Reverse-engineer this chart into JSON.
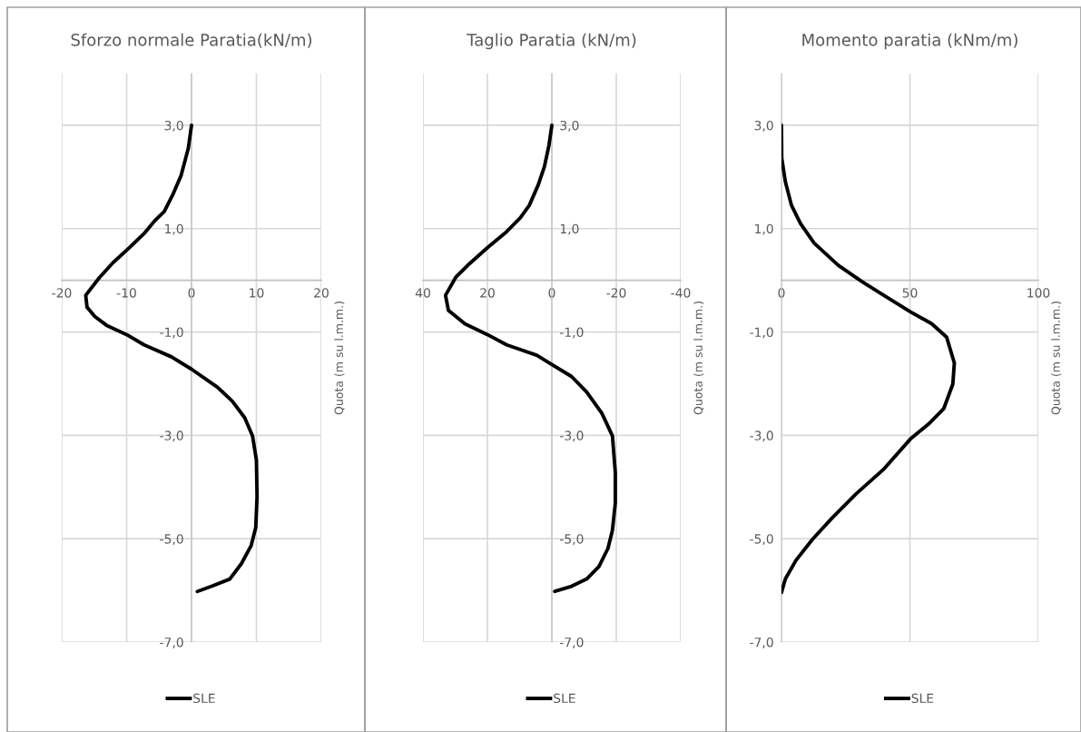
{
  "chart_data": [
    {
      "type": "line",
      "title": "Sforzo normale Paratia(kN/m)",
      "ylabel": "Quota (m su l.m.m.)",
      "xlim": [
        -20,
        20
      ],
      "xticks": [
        -20,
        -10,
        0,
        10,
        20
      ],
      "ylim": [
        -7,
        4
      ],
      "yticks": [
        {
          "value": -7,
          "label": "-7,0"
        },
        {
          "value": -5,
          "label": "-5,0"
        },
        {
          "value": -3,
          "label": "-3,0"
        },
        {
          "value": -1,
          "label": "-1,0"
        },
        {
          "value": 1,
          "label": "1,0"
        },
        {
          "value": 3,
          "label": "3,0"
        }
      ],
      "grid": true,
      "legend": "bottom",
      "series": [
        {
          "name": "SLE",
          "color": "#000000",
          "x": [
            0,
            -0.5,
            -1.6,
            -2.8,
            -4.2,
            -5.6,
            -7.2,
            -9.6,
            -12.1,
            -14.2,
            -16.3,
            -16.1,
            -14.9,
            -13.1,
            -10.0,
            -7.3,
            -3.1,
            0,
            4.0,
            6.3,
            8.2,
            9.4,
            10.0,
            10.1,
            9.9,
            9.2,
            7.7,
            5.9,
            3.1,
            0.9
          ],
          "values": [
            3.0,
            2.55,
            2.03,
            1.68,
            1.33,
            1.16,
            0.92,
            0.63,
            0.34,
            0.05,
            -0.29,
            -0.52,
            -0.7,
            -0.87,
            -1.05,
            -1.25,
            -1.48,
            -1.72,
            -2.07,
            -2.34,
            -2.66,
            -3.01,
            -3.48,
            -4.19,
            -4.78,
            -5.13,
            -5.48,
            -5.78,
            -5.92,
            -6.02
          ]
        }
      ]
    },
    {
      "type": "line",
      "title": "Taglio Paratia (kN/m)",
      "ylabel": "Quota (m su l.m.m.)",
      "xlim": [
        40,
        -40
      ],
      "xticks": [
        40,
        20,
        0,
        -20,
        -40
      ],
      "ylim": [
        -7,
        4
      ],
      "yticks": [
        {
          "value": -7,
          "label": "-7,0"
        },
        {
          "value": -5,
          "label": "-5,0"
        },
        {
          "value": -3,
          "label": "-3,0"
        },
        {
          "value": -1,
          "label": "-1,0"
        },
        {
          "value": 1,
          "label": "1,0"
        },
        {
          "value": 3,
          "label": "3,0"
        }
      ],
      "grid": true,
      "legend": "bottom",
      "series": [
        {
          "name": "SLE",
          "color": "#000000",
          "x": [
            0,
            0.9,
            2.3,
            4.2,
            7.0,
            9.8,
            14.4,
            20.0,
            25.6,
            29.8,
            33.0,
            32.1,
            27.0,
            20.0,
            14.0,
            4.7,
            0,
            -6.1,
            -10.8,
            -15.5,
            -18.8,
            -19.7,
            -19.7,
            -18.8,
            -17.4,
            -14.6,
            -10.8,
            -6.1,
            -0.9
          ],
          "values": [
            3.0,
            2.61,
            2.2,
            1.85,
            1.45,
            1.21,
            0.92,
            0.63,
            0.32,
            0.06,
            -0.29,
            -0.58,
            -0.84,
            -1.05,
            -1.25,
            -1.45,
            -1.63,
            -1.86,
            -2.16,
            -2.57,
            -3.01,
            -3.72,
            -4.31,
            -4.84,
            -5.19,
            -5.54,
            -5.78,
            -5.92,
            -6.02
          ]
        }
      ]
    },
    {
      "type": "line",
      "title": "Momento paratia (kNm/m)",
      "ylabel": "Quota (m su l.m.m.)",
      "xlim": [
        0,
        100
      ],
      "xticks": [
        0,
        50,
        100
      ],
      "ylim": [
        -7,
        4
      ],
      "yticks": [
        {
          "value": -7,
          "label": "-7,0"
        },
        {
          "value": -5,
          "label": "-5,0"
        },
        {
          "value": -3,
          "label": "-3,0"
        },
        {
          "value": -1,
          "label": "-1,0"
        },
        {
          "value": 1,
          "label": "1,0"
        },
        {
          "value": 3,
          "label": "3,0"
        }
      ],
      "grid": true,
      "legend": "bottom",
      "series": [
        {
          "name": "SLE",
          "color": "#000000",
          "x": [
            0,
            0.1,
            1.5,
            3.9,
            7.4,
            12.7,
            22.1,
            31.5,
            40.8,
            50.2,
            58.5,
            64.3,
            67.3,
            66.7,
            63.2,
            57.3,
            50.2,
            39.7,
            29.1,
            19.7,
            12.1,
            5.6,
            1.5,
            0
          ],
          "values": [
            3.0,
            2.37,
            1.91,
            1.45,
            1.1,
            0.72,
            0.29,
            -0.03,
            -0.32,
            -0.61,
            -0.84,
            -1.1,
            -1.6,
            -2.01,
            -2.48,
            -2.78,
            -3.07,
            -3.66,
            -4.13,
            -4.6,
            -5.01,
            -5.42,
            -5.78,
            -6.04
          ]
        }
      ]
    }
  ]
}
